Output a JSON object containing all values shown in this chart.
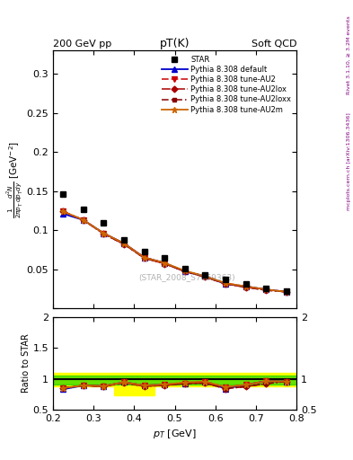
{
  "title_top_left": "200 GeV pp",
  "title_top_right": "Soft QCD",
  "plot_title": "pT(K)",
  "xlabel": "p_{T} [GeV]",
  "watermark": "(STAR_2008_S7869363)",
  "right_label": "mcplots.cern.ch [arXiv:1306.3436]",
  "rivet_label": "Rivet 3.1.10, ≥ 3.2M events",
  "pt_values": [
    0.225,
    0.275,
    0.325,
    0.375,
    0.425,
    0.475,
    0.525,
    0.575,
    0.625,
    0.675,
    0.725,
    0.775
  ],
  "star_data": [
    0.146,
    0.127,
    0.109,
    0.088,
    0.073,
    0.064,
    0.051,
    0.043,
    0.037,
    0.031,
    0.025,
    0.022
  ],
  "default_data": [
    0.121,
    0.113,
    0.096,
    0.083,
    0.065,
    0.058,
    0.047,
    0.041,
    0.031,
    0.028,
    0.024,
    0.021
  ],
  "au2_data": [
    0.124,
    0.113,
    0.096,
    0.083,
    0.065,
    0.058,
    0.047,
    0.041,
    0.032,
    0.028,
    0.024,
    0.021
  ],
  "au2lox_data": [
    0.124,
    0.113,
    0.095,
    0.082,
    0.064,
    0.057,
    0.047,
    0.04,
    0.031,
    0.027,
    0.023,
    0.021
  ],
  "au2loxx_data": [
    0.124,
    0.113,
    0.095,
    0.082,
    0.064,
    0.057,
    0.047,
    0.04,
    0.031,
    0.027,
    0.023,
    0.021
  ],
  "au2m_data": [
    0.124,
    0.113,
    0.096,
    0.083,
    0.065,
    0.058,
    0.048,
    0.041,
    0.032,
    0.028,
    0.024,
    0.021
  ],
  "ratio_default": [
    0.829,
    0.89,
    0.881,
    0.943,
    0.89,
    0.906,
    0.922,
    0.953,
    0.838,
    0.903,
    0.96,
    0.955
  ],
  "ratio_au2": [
    0.849,
    0.89,
    0.881,
    0.943,
    0.89,
    0.906,
    0.922,
    0.953,
    0.865,
    0.903,
    0.96,
    0.955
  ],
  "ratio_au2lox": [
    0.849,
    0.89,
    0.872,
    0.932,
    0.877,
    0.891,
    0.922,
    0.93,
    0.838,
    0.871,
    0.92,
    0.955
  ],
  "ratio_au2loxx": [
    0.849,
    0.89,
    0.872,
    0.932,
    0.877,
    0.891,
    0.922,
    0.93,
    0.838,
    0.871,
    0.92,
    0.955
  ],
  "ratio_au2m": [
    0.849,
    0.89,
    0.881,
    0.943,
    0.89,
    0.906,
    0.941,
    0.953,
    0.865,
    0.903,
    0.96,
    0.955
  ],
  "color_default": "#0000cc",
  "color_au2": "#cc0000",
  "color_au2lox": "#aa0000",
  "color_au2loxx": "#880000",
  "color_au2m": "#cc6600",
  "color_star": "#000000",
  "ylim_main": [
    0.0,
    0.33
  ],
  "ylim_ratio": [
    0.5,
    2.0
  ],
  "xlim": [
    0.2,
    0.8
  ]
}
